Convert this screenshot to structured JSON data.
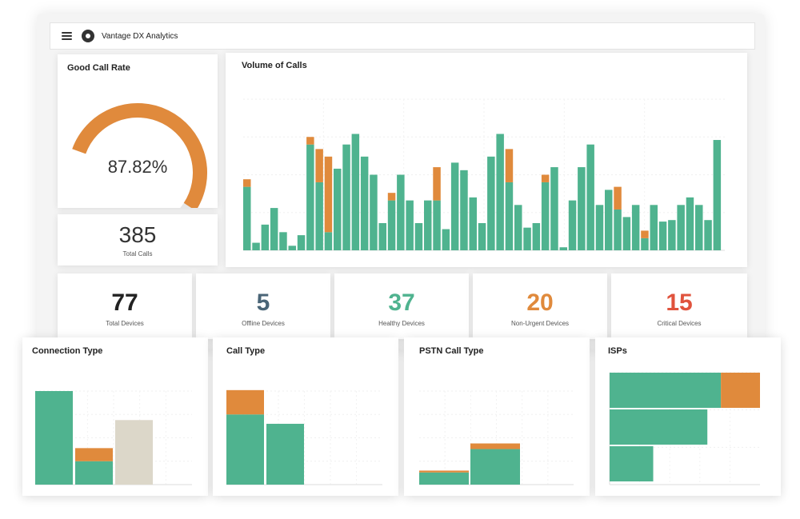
{
  "app": {
    "title": "Vantage DX Analytics"
  },
  "colors": {
    "green": "#4fb38f",
    "orange": "#e08a3c",
    "beige": "#dcd7c9",
    "grey": "#e6e6e6",
    "healthy": "#4fb38f",
    "offline": "#4a6577",
    "nonurgent": "#e08a3c",
    "critical": "#e0533d",
    "total": "#222222"
  },
  "good_call_rate": {
    "title": "Good Call Rate",
    "value": "87.82%",
    "fraction": 0.8782
  },
  "total_calls": {
    "value": "385",
    "label": "Total Calls"
  },
  "devices": [
    {
      "value": "77",
      "label": "Total Devices",
      "color": "total"
    },
    {
      "value": "5",
      "label": "Offline Devices",
      "color": "offline"
    },
    {
      "value": "37",
      "label": "Healthy Devices",
      "color": "healthy"
    },
    {
      "value": "20",
      "label": "Non-Urgent Devices",
      "color": "nonurgent"
    },
    {
      "value": "15",
      "label": "Critical Devices",
      "color": "critical"
    }
  ],
  "chart_data": [
    {
      "type": "bar",
      "title": "Volume of Calls",
      "stacked": true,
      "ylim": [
        0,
        100
      ],
      "grid": true,
      "series": [
        {
          "color": "green",
          "values": [
            42,
            5,
            17,
            28,
            12,
            3,
            10,
            70,
            45,
            12,
            54,
            70,
            77,
            62,
            50,
            18,
            33,
            50,
            33,
            18,
            33,
            33,
            14,
            58,
            53,
            35,
            18,
            62,
            77,
            45,
            30,
            15,
            18,
            45,
            55,
            2,
            33,
            55,
            70,
            30,
            40,
            27,
            22,
            30,
            8,
            30,
            19,
            20,
            30,
            35,
            30,
            20,
            73
          ]
        },
        {
          "color": "orange",
          "values": [
            5,
            0,
            0,
            0,
            0,
            0,
            0,
            5,
            22,
            50,
            0,
            0,
            0,
            0,
            0,
            0,
            5,
            0,
            0,
            0,
            0,
            22,
            0,
            0,
            0,
            0,
            0,
            0,
            0,
            22,
            0,
            0,
            0,
            5,
            0,
            0,
            0,
            0,
            0,
            0,
            0,
            15,
            0,
            0,
            5,
            0,
            0,
            0,
            0,
            0,
            0,
            0,
            0
          ]
        }
      ]
    },
    {
      "type": "bar",
      "title": "Connection Type",
      "stacked": true,
      "ylim": [
        0,
        100
      ],
      "grid": true,
      "series": [
        {
          "color": "green",
          "values": [
            100,
            25,
            0
          ]
        },
        {
          "color": "orange",
          "values": [
            0,
            14,
            0
          ]
        },
        {
          "color": "beige",
          "values": [
            0,
            0,
            69
          ]
        }
      ]
    },
    {
      "type": "bar",
      "title": "Call Type",
      "stacked": true,
      "ylim": [
        0,
        100
      ],
      "grid": true,
      "series": [
        {
          "color": "green",
          "values": [
            75,
            65
          ]
        },
        {
          "color": "orange",
          "values": [
            26,
            0
          ]
        }
      ]
    },
    {
      "type": "bar",
      "title": "PSTN Call Type",
      "stacked": true,
      "ylim": [
        0,
        100
      ],
      "grid": true,
      "series": [
        {
          "color": "green",
          "values": [
            13,
            38
          ]
        },
        {
          "color": "orange",
          "values": [
            2,
            6
          ]
        }
      ]
    },
    {
      "type": "bar",
      "orientation": "horizontal",
      "title": "ISPs",
      "stacked": true,
      "xlim": [
        0,
        100
      ],
      "grid": true,
      "series": [
        {
          "color": "green",
          "values": [
            74,
            65,
            29
          ]
        },
        {
          "color": "orange",
          "values": [
            26,
            0,
            0
          ]
        }
      ]
    }
  ]
}
